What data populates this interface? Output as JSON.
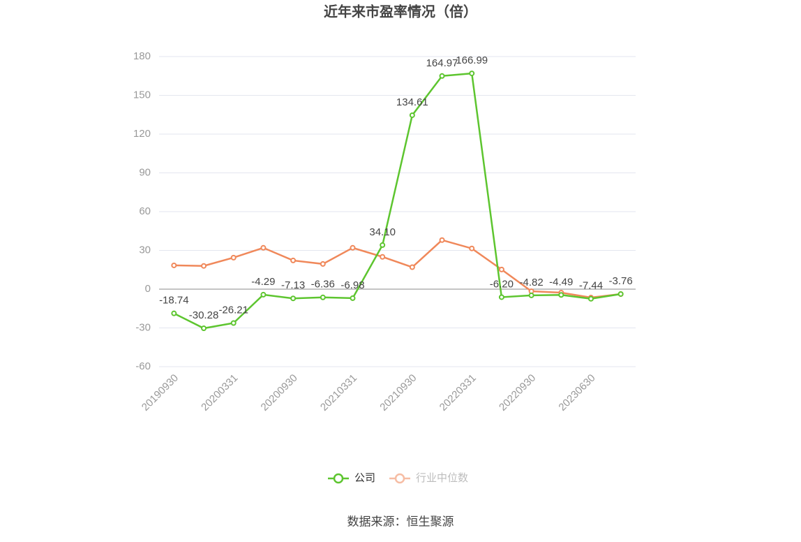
{
  "chart_data": {
    "type": "line",
    "title": "近年来市盈率情况（倍）",
    "categories": [
      "20190930",
      null,
      "20200331",
      null,
      "20200930",
      null,
      "20210331",
      null,
      "20210930",
      null,
      "20220331",
      null,
      "20220930",
      null,
      "20230630",
      null
    ],
    "series": [
      {
        "name": "公司",
        "color": "#5dc52f",
        "values": [
          -18.74,
          -30.28,
          -26.21,
          -4.29,
          -7.13,
          -6.36,
          -6.98,
          34.1,
          134.61,
          164.97,
          166.99,
          -6.2,
          -4.82,
          -4.49,
          -7.44,
          -3.76
        ],
        "value_labels": [
          "-18.74",
          "-30.28",
          "-26.21",
          "-4.29",
          "-7.13",
          "-6.36",
          "-6.98",
          "34.10",
          "134.61",
          "164.97",
          "166.99",
          "-6.20",
          "-4.82",
          "-4.49",
          "-7.44",
          "-3.76"
        ]
      },
      {
        "name": "行业中位数",
        "color": "#f0885a",
        "values": [
          18.4,
          18,
          24.4,
          32,
          22.2,
          19.5,
          32,
          25,
          17,
          38,
          31.5,
          15.2,
          -1.6,
          -2.7,
          -6.5,
          -3.8
        ]
      }
    ],
    "ylim": [
      -60,
      180
    ],
    "yticks": [
      -60,
      -30,
      0,
      30,
      60,
      90,
      120,
      150,
      180
    ],
    "grid": true,
    "source": "数据来源：恒生聚源"
  }
}
